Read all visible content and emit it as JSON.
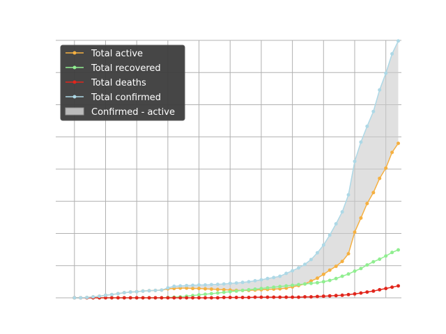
{
  "chart_data": {
    "type": "line",
    "title": "",
    "xlabel": "",
    "ylabel": "",
    "xlim": [
      -3,
      52.5
    ],
    "ylim": [
      0,
      80000
    ],
    "x_ticks": [
      0,
      5,
      10,
      15,
      20,
      25,
      30,
      35,
      40,
      45,
      50
    ],
    "y_ticks": [
      0,
      10000,
      20000,
      30000,
      40000,
      50000,
      60000,
      70000,
      80000
    ],
    "grid": true,
    "legend": {
      "placement": "top-left",
      "entries": [
        {
          "label": "Total active",
          "series": "active"
        },
        {
          "label": "Total recovered",
          "series": "recovered"
        },
        {
          "label": "Total deaths",
          "series": "deaths"
        },
        {
          "label": "Total confirmed",
          "series": "confirmed"
        },
        {
          "label": "Confirmed - active",
          "series": "fill"
        }
      ]
    },
    "x": [
      0,
      1,
      2,
      3,
      4,
      5,
      6,
      7,
      8,
      9,
      10,
      11,
      12,
      13,
      14,
      15,
      16,
      17,
      18,
      19,
      20,
      21,
      22,
      23,
      24,
      25,
      26,
      27,
      28,
      29,
      30,
      31,
      32,
      33,
      34,
      35,
      36,
      37,
      38,
      39,
      40,
      41,
      42,
      43,
      44,
      45,
      46,
      47,
      48,
      49,
      50,
      51,
      52
    ],
    "series": [
      {
        "name": "Total active",
        "key": "active",
        "color": "#f5b041",
        "values": [
          0,
          0,
          100,
          300,
          500,
          800,
          1000,
          1300,
          1600,
          1800,
          1900,
          2100,
          2200,
          2300,
          2400,
          2800,
          2900,
          3000,
          3000,
          2900,
          2900,
          2800,
          2700,
          2600,
          2500,
          2400,
          2300,
          2300,
          2300,
          2400,
          2500,
          2600,
          2700,
          2800,
          3000,
          3400,
          3800,
          4300,
          5200,
          6100,
          7300,
          8600,
          9800,
          11300,
          13700,
          20400,
          24800,
          29300,
          32700,
          37100,
          40300,
          45200,
          48000
        ]
      },
      {
        "name": "Total recovered",
        "key": "recovered",
        "color": "#90ee90",
        "values": [
          0,
          0,
          0,
          0,
          0,
          0,
          0,
          0,
          0,
          0,
          0,
          0,
          0,
          0,
          0,
          100,
          200,
          300,
          500,
          700,
          900,
          1100,
          1300,
          1500,
          1700,
          1900,
          2100,
          2300,
          2500,
          2700,
          2900,
          3100,
          3300,
          3500,
          3700,
          3900,
          4100,
          4300,
          4500,
          4700,
          5000,
          5400,
          6000,
          6700,
          7400,
          8300,
          9100,
          10200,
          11200,
          12000,
          13000,
          14100,
          14900
        ]
      },
      {
        "name": "Total deaths",
        "key": "deaths",
        "color": "#e1261c",
        "values": [
          0,
          0,
          0,
          0,
          0,
          0,
          0,
          0,
          0,
          0,
          0,
          0,
          0,
          0,
          0,
          0,
          0,
          0,
          0,
          0,
          0,
          0,
          0,
          0,
          100,
          100,
          100,
          100,
          100,
          200,
          200,
          200,
          200,
          200,
          200,
          200,
          200,
          300,
          300,
          400,
          500,
          600,
          700,
          800,
          1000,
          1200,
          1500,
          1800,
          2100,
          2500,
          2900,
          3300,
          3700
        ]
      },
      {
        "name": "Total confirmed",
        "key": "confirmed",
        "color": "#add8e6",
        "values": [
          0,
          0,
          100,
          300,
          500,
          800,
          1000,
          1300,
          1600,
          1800,
          1900,
          2100,
          2200,
          2300,
          2400,
          3100,
          3600,
          3700,
          3800,
          3900,
          4000,
          4000,
          4100,
          4200,
          4300,
          4500,
          4600,
          4800,
          5000,
          5300,
          5600,
          6000,
          6300,
          6700,
          7600,
          8400,
          9300,
          10400,
          11900,
          14000,
          16400,
          19500,
          23000,
          26700,
          32000,
          42400,
          48400,
          53300,
          57900,
          64600,
          69800,
          75800,
          79800
        ]
      }
    ],
    "fill_between": {
      "label": "Confirmed - active",
      "upper": "confirmed",
      "lower": "active",
      "color": "#cccccc"
    }
  }
}
